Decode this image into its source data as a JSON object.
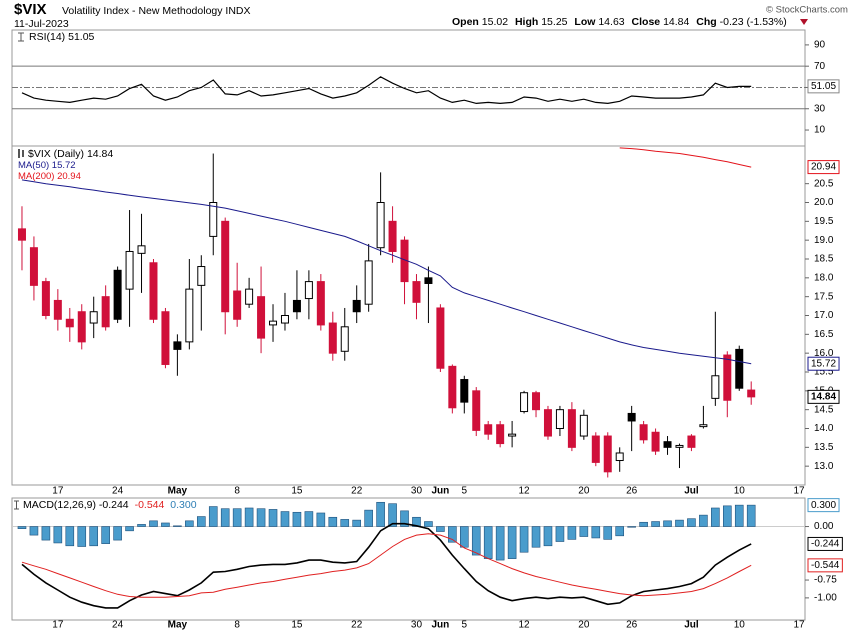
{
  "header": {
    "symbol": "$VIX",
    "name": "Volatility Index - New Methodology INDX",
    "date": "11-Jul-2023",
    "open_label": "Open",
    "high_label": "High",
    "low_label": "Low",
    "close_label": "Close",
    "chg_label": "Chg",
    "chg": -0.23,
    "chg_pct": "(-1.53%)",
    "copyright": "© StockCharts.com"
  },
  "chart_data": [
    {
      "type": "line",
      "ylim": [
        -5,
        104
      ],
      "yticks": [
        90,
        70,
        50,
        30,
        10
      ],
      "overbought": 70,
      "oversold": 30,
      "midline": 50,
      "series": [
        {
          "name": "RSI(14)",
          "color": "#000000",
          "values": [
            45,
            40,
            38,
            37,
            36,
            38,
            40,
            39,
            42,
            49,
            53,
            42,
            38,
            41,
            47,
            50,
            57,
            44,
            43,
            47,
            42,
            43,
            45,
            47,
            49,
            44,
            40,
            42,
            45,
            52,
            60,
            54,
            49,
            45,
            47,
            40,
            36,
            38,
            35,
            36,
            35,
            36,
            41,
            40,
            37,
            39,
            37,
            39,
            36,
            35,
            37,
            42,
            41,
            40,
            40,
            40,
            41,
            43,
            54,
            50,
            51,
            51.05,
            null,
            null,
            null,
            null
          ]
        }
      ]
    },
    {
      "type": "candlestick",
      "ylim": [
        12.5,
        21.5
      ],
      "yticks": [
        {
          "value": 13,
          "label": "13.0"
        },
        13.5,
        {
          "value": 14,
          "label": "14.0"
        },
        14.5,
        {
          "value": 15,
          "label": "15.0"
        },
        15.5,
        {
          "value": 16,
          "label": "16.0"
        },
        16.5,
        {
          "value": 17,
          "label": "17.0"
        },
        17.5,
        {
          "value": 18,
          "label": "18.0"
        },
        18.5,
        {
          "value": 19,
          "label": "19.0"
        },
        19.5,
        {
          "value": 20,
          "label": "20.0"
        },
        20.5
      ],
      "categories": [
        null,
        null,
        null,
        "17",
        null,
        null,
        null,
        null,
        "24",
        null,
        null,
        null,
        null,
        "May",
        null,
        null,
        null,
        null,
        "8",
        null,
        null,
        null,
        null,
        "15",
        null,
        null,
        null,
        null,
        "22",
        null,
        null,
        null,
        null,
        "30",
        null,
        "Jun",
        null,
        "5",
        null,
        null,
        null,
        null,
        "12",
        null,
        null,
        null,
        null,
        "20",
        null,
        null,
        null,
        "26",
        null,
        null,
        null,
        null,
        "Jul",
        null,
        null,
        null,
        "10",
        null,
        null,
        null,
        null,
        "17"
      ],
      "series": [
        {
          "name": "$VIX (Daily)",
          "type": "ohlc",
          "up_color": "#000000",
          "down_color": "#d0103a",
          "open": [
            19.3,
            18.8,
            17.9,
            17.4,
            16.9,
            17.1,
            16.8,
            17.5,
            18.2,
            17.7,
            18.65,
            18.4,
            17.1,
            16.3,
            16.3,
            17.8,
            19.1,
            19.5,
            17.65,
            17.3,
            17.5,
            16.75,
            16.8,
            17.4,
            17.45,
            17.9,
            16.8,
            16.05,
            17.4,
            17.3,
            18.8,
            19.5,
            19.0,
            17.9,
            18.0,
            17.2,
            15.65,
            15.3,
            15.0,
            14.1,
            14.1,
            13.8,
            14.45,
            14.95,
            14.5,
            14.0,
            14.5,
            13.8,
            13.8,
            13.8,
            13.15,
            14.4,
            14.1,
            13.9,
            13.65,
            13.5,
            13.8,
            14.05,
            14.8,
            15.95,
            16.1,
            15.02,
            null,
            null,
            null,
            null
          ],
          "high": [
            19.9,
            19.1,
            18.0,
            17.7,
            17.2,
            17.3,
            17.5,
            17.8,
            18.3,
            19.8,
            19.7,
            18.5,
            17.2,
            16.5,
            18.5,
            18.6,
            21.3,
            19.6,
            18.4,
            18.0,
            18.3,
            17.3,
            17.6,
            18.2,
            18.2,
            18.1,
            17.1,
            17.2,
            17.8,
            18.9,
            20.8,
            19.9,
            19.1,
            18.1,
            18.3,
            17.3,
            15.7,
            15.4,
            15.1,
            14.2,
            14.2,
            14.2,
            15.0,
            15.0,
            14.6,
            14.6,
            14.7,
            14.5,
            13.9,
            13.9,
            13.5,
            14.6,
            14.2,
            14.0,
            13.8,
            13.6,
            13.85,
            14.6,
            17.1,
            16.05,
            16.2,
            15.25,
            null,
            null,
            null,
            null
          ],
          "low": [
            18.2,
            17.4,
            16.9,
            16.6,
            16.3,
            16.1,
            16.4,
            16.6,
            16.8,
            16.7,
            17.6,
            16.8,
            15.6,
            15.4,
            16.1,
            16.6,
            18.6,
            16.5,
            16.7,
            17.2,
            16.0,
            16.3,
            16.6,
            16.9,
            16.9,
            16.6,
            15.8,
            15.8,
            16.8,
            17.1,
            18.6,
            18.4,
            17.3,
            16.9,
            16.8,
            15.5,
            14.4,
            14.4,
            13.8,
            13.7,
            13.5,
            13.5,
            14.4,
            14.3,
            13.7,
            13.8,
            13.4,
            13.7,
            13.0,
            12.7,
            12.85,
            13.4,
            13.6,
            13.3,
            13.3,
            12.95,
            13.4,
            14.0,
            14.6,
            14.3,
            15.0,
            14.63,
            null,
            null,
            null,
            null
          ],
          "close": [
            19.0,
            17.8,
            17.0,
            16.9,
            16.7,
            16.3,
            17.1,
            16.7,
            16.9,
            18.7,
            18.85,
            16.9,
            15.7,
            16.1,
            17.7,
            18.3,
            20.0,
            17.1,
            16.9,
            17.7,
            16.4,
            16.85,
            17.0,
            17.1,
            17.9,
            16.75,
            16.0,
            16.7,
            17.1,
            18.45,
            20.0,
            18.7,
            17.9,
            17.35,
            17.85,
            15.6,
            14.55,
            14.7,
            13.95,
            13.85,
            13.6,
            13.85,
            14.95,
            14.5,
            13.8,
            14.5,
            13.5,
            14.35,
            13.1,
            12.85,
            13.35,
            14.2,
            13.7,
            13.4,
            13.5,
            13.55,
            13.5,
            14.1,
            15.4,
            14.75,
            15.07,
            14.84,
            null,
            null,
            null,
            null
          ]
        },
        {
          "name": "MA(50)",
          "type": "line",
          "color": "#1a1a8c",
          "values": [
            20.6,
            20.55,
            20.5,
            20.46,
            20.42,
            20.37,
            20.33,
            20.28,
            20.24,
            20.19,
            20.15,
            20.11,
            20.07,
            20.03,
            19.99,
            19.95,
            19.9,
            19.85,
            19.78,
            19.71,
            19.64,
            19.57,
            19.5,
            19.42,
            19.34,
            19.26,
            19.18,
            19.1,
            18.98,
            18.85,
            18.72,
            18.6,
            18.48,
            18.36,
            18.2,
            18.05,
            17.75,
            17.6,
            17.5,
            17.4,
            17.3,
            17.2,
            17.1,
            17.0,
            16.9,
            16.8,
            16.7,
            16.6,
            16.5,
            16.4,
            16.3,
            16.22,
            16.15,
            16.1,
            16.05,
            16.0,
            15.96,
            15.92,
            15.88,
            15.84,
            15.78,
            15.72,
            null,
            null,
            null,
            null
          ]
        },
        {
          "name": "MA(200)",
          "type": "line",
          "color": "#e3131b",
          "values": [
            null,
            null,
            null,
            null,
            null,
            null,
            null,
            null,
            null,
            null,
            null,
            null,
            null,
            null,
            null,
            null,
            null,
            null,
            null,
            null,
            null,
            null,
            null,
            null,
            null,
            null,
            null,
            null,
            null,
            null,
            null,
            null,
            null,
            null,
            null,
            null,
            null,
            null,
            null,
            null,
            null,
            null,
            null,
            null,
            null,
            null,
            null,
            null,
            null,
            null,
            21.45,
            21.43,
            21.4,
            21.36,
            21.33,
            21.3,
            21.25,
            21.2,
            21.14,
            21.08,
            21.01,
            20.94,
            null,
            null,
            null,
            null
          ]
        }
      ]
    },
    {
      "type": "macd",
      "title": "MACD(12,26,9)",
      "ylim": [
        -1.31,
        0.4
      ],
      "yticks": [
        {
          "value": 0,
          "label": "0.00"
        },
        -0.75,
        {
          "value": -1,
          "label": "-1.00"
        }
      ],
      "series": [
        {
          "type": "line",
          "color": "#000000",
          "values": [
            -0.53,
            -0.67,
            -0.79,
            -0.89,
            -0.99,
            -1.06,
            -1.11,
            -1.14,
            -1.14,
            -1.04,
            -0.96,
            -0.91,
            -0.94,
            -0.97,
            -0.89,
            -0.79,
            -0.64,
            -0.63,
            -0.6,
            -0.56,
            -0.54,
            -0.53,
            -0.53,
            -0.51,
            -0.47,
            -0.47,
            -0.5,
            -0.51,
            -0.49,
            -0.29,
            -0.06,
            0.04,
            0.04,
            0.01,
            -0.03,
            -0.19,
            -0.4,
            -0.59,
            -0.77,
            -0.9,
            -0.99,
            -1.04,
            -1.01,
            -0.99,
            -1.01,
            -0.99,
            -1.0,
            -0.99,
            -1.04,
            -1.09,
            -1.07,
            -0.97,
            -0.91,
            -0.89,
            -0.87,
            -0.84,
            -0.8,
            -0.71,
            -0.54,
            -0.43,
            -0.33,
            -0.244,
            null,
            null,
            null,
            null
          ]
        },
        {
          "type": "line",
          "color": "#e02020",
          "values": [
            -0.5,
            -0.55,
            -0.6,
            -0.66,
            -0.72,
            -0.78,
            -0.84,
            -0.9,
            -0.95,
            -0.98,
            -0.99,
            -0.99,
            -0.99,
            -0.98,
            -0.97,
            -0.93,
            -0.92,
            -0.88,
            -0.85,
            -0.82,
            -0.79,
            -0.77,
            -0.74,
            -0.71,
            -0.68,
            -0.66,
            -0.63,
            -0.61,
            -0.58,
            -0.52,
            -0.4,
            -0.28,
            -0.18,
            -0.12,
            -0.1,
            -0.12,
            -0.18,
            -0.3,
            -0.37,
            -0.45,
            -0.52,
            -0.59,
            -0.65,
            -0.7,
            -0.74,
            -0.78,
            -0.82,
            -0.85,
            -0.88,
            -0.91,
            -0.94,
            -0.96,
            -0.97,
            -0.96,
            -0.95,
            -0.93,
            -0.91,
            -0.87,
            -0.8,
            -0.72,
            -0.63,
            -0.544,
            null,
            null,
            null,
            null
          ]
        },
        {
          "type": "bar",
          "color": "#4a9ccc",
          "values": [
            -0.03,
            -0.12,
            -0.19,
            -0.23,
            -0.27,
            -0.28,
            -0.27,
            -0.24,
            -0.19,
            -0.06,
            0.03,
            0.08,
            0.05,
            0.01,
            0.08,
            0.14,
            0.28,
            0.25,
            0.25,
            0.26,
            0.25,
            0.24,
            0.21,
            0.2,
            0.21,
            0.19,
            0.13,
            0.1,
            0.09,
            0.23,
            0.34,
            0.32,
            0.22,
            0.13,
            0.07,
            -0.07,
            -0.22,
            -0.29,
            -0.4,
            -0.45,
            -0.47,
            -0.45,
            -0.36,
            -0.29,
            -0.27,
            -0.21,
            -0.18,
            -0.14,
            -0.16,
            -0.18,
            -0.13,
            -0.01,
            0.06,
            0.07,
            0.08,
            0.09,
            0.11,
            0.16,
            0.26,
            0.29,
            0.3,
            0.3,
            null,
            null,
            null,
            null
          ],
          "value_labels": [
            null,
            null,
            null,
            null,
            null,
            null,
            null,
            null,
            null,
            null,
            null,
            null,
            null,
            null,
            null,
            null,
            null,
            null,
            null,
            null,
            null,
            null,
            null,
            null,
            null,
            null,
            null,
            null,
            null,
            null,
            null,
            null,
            null,
            null,
            null,
            null,
            null,
            null,
            null,
            null,
            null,
            null,
            null,
            null,
            null,
            null,
            null,
            null,
            null,
            null,
            null,
            null,
            null,
            null,
            null,
            null,
            null,
            null,
            null,
            null,
            null,
            "0.300",
            null,
            null,
            null,
            null
          ]
        }
      ]
    }
  ]
}
